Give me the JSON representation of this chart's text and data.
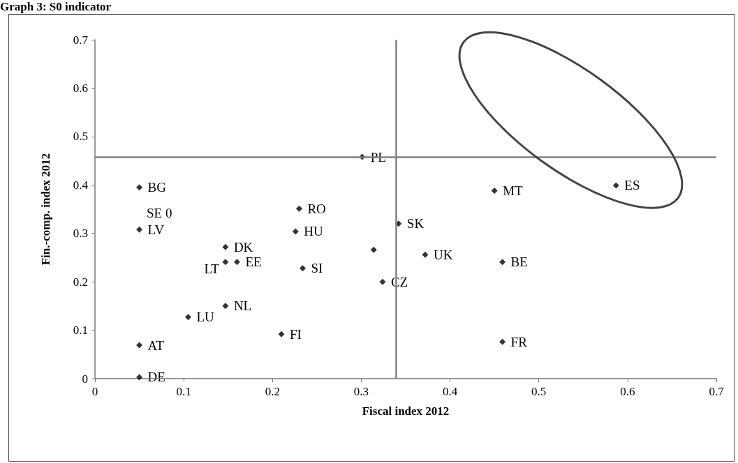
{
  "chart_data": {
    "type": "scatter",
    "title": "Graph 3: S0 indicator",
    "xlabel": "Fiscal index 2012",
    "ylabel": "Fin.-comp. index 2012",
    "x": [
      0.05,
      0.05,
      0.147,
      0.147,
      0.16,
      0.23,
      0.226,
      0.234,
      0.147,
      0.105,
      0.21,
      0.05,
      0.05,
      0.314,
      0.301,
      0.342,
      0.372,
      0.324,
      0.45,
      0.587,
      0.459,
      0.459
    ],
    "series": [
      {
        "color": "#000000",
        "values": [
          0.395,
          0.308,
          0.272,
          0.241,
          0.241,
          0.351,
          0.304,
          0.228,
          0.15,
          0.127,
          0.092,
          0.069,
          0.003,
          0.266,
          0.458,
          0.32,
          0.256,
          0.2,
          0.388,
          0.399,
          0.241,
          0.076
        ]
      }
    ],
    "xlim": [
      0,
      0.7
    ],
    "ylim": [
      0,
      0.7
    ],
    "xticks": [
      0,
      0.1,
      0.2,
      0.3,
      0.4,
      0.5,
      0.6,
      0.7
    ],
    "yticks": [
      0,
      0.1,
      0.2,
      0.3,
      0.4,
      0.5,
      0.6,
      0.7
    ],
    "marker": "diamond",
    "grid": false,
    "ref_lines": [
      {
        "axis": "y",
        "value": 0.457,
        "color": "#808080"
      },
      {
        "axis": "x",
        "value": 0.339,
        "color": "#808080"
      }
    ],
    "annotations": [
      {
        "text": "BG",
        "x": 0.05,
        "y": 0.395
      },
      "SE 0",
      {
        "text": "LV",
        "x": 0.05,
        "y": 0.308
      },
      {
        "text": "DK",
        "x": 0.147,
        "y": 0.272
      },
      {
        "text": "LT",
        "x": 0.147,
        "y": 0.241
      },
      {
        "text": "EE",
        "x": 0.16,
        "y": 0.241
      },
      {
        "text": "RO",
        "x": 0.23,
        "y": 0.351
      },
      {
        "text": "HU",
        "x": 0.226,
        "y": 0.304
      },
      {
        "text": "SI",
        "x": 0.234,
        "y": 0.228
      },
      {
        "text": "NL",
        "x": 0.147,
        "y": 0.15
      },
      {
        "text": "LU",
        "x": 0.105,
        "y": 0.127
      },
      {
        "text": "FI",
        "x": 0.21,
        "y": 0.092
      },
      {
        "text": "AT",
        "x": 0.05,
        "y": 0.069
      },
      {
        "text": "DE",
        "x": 0.05,
        "y": 0.003
      },
      {
        "text": "PL",
        "x": 0.301,
        "y": 0.458
      },
      {
        "text": "SK",
        "x": 0.342,
        "y": 0.32
      },
      {
        "text": "UK",
        "x": 0.372,
        "y": 0.256
      },
      {
        "text": "CZ",
        "x": 0.324,
        "y": 0.2
      },
      {
        "text": "MT",
        "x": 0.45,
        "y": 0.388
      },
      {
        "text": "ES",
        "x": 0.587,
        "y": 0.399
      },
      {
        "text": "BE",
        "x": 0.459,
        "y": 0.241
      },
      {
        "text": "FR",
        "x": 0.459,
        "y": 0.076
      }
    ]
  }
}
